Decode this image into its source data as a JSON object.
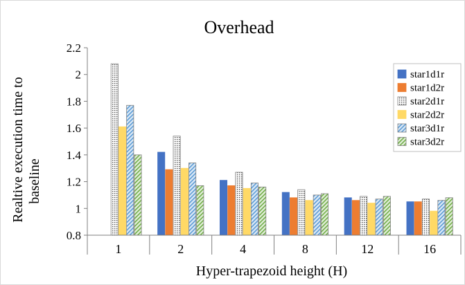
{
  "chart_data": {
    "type": "bar",
    "title": "Overhead",
    "xlabel": "Hyper-trapezoid height (H)",
    "ylabel": "Realtive execution time to baseline",
    "ylabel_lines": [
      "Realtive execution time to",
      "baseline"
    ],
    "categories": [
      "1",
      "2",
      "4",
      "8",
      "12",
      "16"
    ],
    "ylim": [
      0.8,
      2.2
    ],
    "yticks": [
      "0.8",
      "1",
      "1.2",
      "1.4",
      "1.6",
      "1.8",
      "2",
      "2.2"
    ],
    "grid": "none",
    "legend_position": "top-right",
    "series": [
      {
        "name": "star1d1r",
        "color": "#4472C4",
        "pattern": "solid",
        "values": [
          0.8,
          1.42,
          1.21,
          1.12,
          1.08,
          1.05
        ]
      },
      {
        "name": "star1d2r",
        "color": "#ED7D31",
        "pattern": "solid",
        "values": [
          0.8,
          1.29,
          1.17,
          1.08,
          1.06,
          1.05
        ]
      },
      {
        "name": "star2d1r",
        "color": "#A5A5A5",
        "pattern": "dotted",
        "values": [
          2.08,
          1.54,
          1.27,
          1.14,
          1.09,
          1.07
        ]
      },
      {
        "name": "star2d2r",
        "color": "#FFD966",
        "pattern": "solid",
        "values": [
          1.61,
          1.3,
          1.15,
          1.06,
          1.04,
          0.98
        ]
      },
      {
        "name": "star3d1r",
        "color": "#9DC3E6",
        "pattern": "hatched",
        "values": [
          1.77,
          1.34,
          1.19,
          1.1,
          1.07,
          1.06
        ]
      },
      {
        "name": "star3d2r",
        "color": "#A9D18E",
        "pattern": "hatched",
        "values": [
          1.4,
          1.17,
          1.16,
          1.11,
          1.09,
          1.08
        ]
      }
    ]
  }
}
